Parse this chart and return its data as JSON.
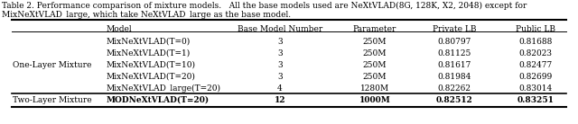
{
  "caption_line1": "Table 2. Performance comparison of mixture models.   All the base models used are NeXtVLAD(8G, 128K, X2, 2048) except for",
  "caption_line2": "MixNeXtVLAD_large, which take NeXtVLAD_large as the base model.",
  "headers": [
    "Model",
    "Base Model Number",
    "Parameter",
    "Private LB",
    "Public LB"
  ],
  "rows": [
    {
      "group": "One-Layer Mixture",
      "model": "MixNeXtVLAD(T=0)",
      "base": "3",
      "param": "250M",
      "private": "0.80797",
      "public": "0.81688"
    },
    {
      "group": "",
      "model": "MixNeXtVLAD(T=1)",
      "base": "3",
      "param": "250M",
      "private": "0.81125",
      "public": "0.82023"
    },
    {
      "group": "",
      "model": "MixNeXtVLAD(T=10)",
      "base": "3",
      "param": "250M",
      "private": "0.81617",
      "public": "0.82477"
    },
    {
      "group": "",
      "model": "MixNeXtVLAD(T=20)",
      "base": "3",
      "param": "250M",
      "private": "0.81984",
      "public": "0.82699"
    },
    {
      "group": "",
      "model": "MixNeXtVLAD_large(T=20)",
      "base": "4",
      "param": "1280M",
      "private": "0.82262",
      "public": "0.83014"
    },
    {
      "group": "Two-Layer Mixture",
      "model": "MODNeXtVLAD(T=20)",
      "base": "12",
      "param": "1000M",
      "private": "0.82512",
      "public": "0.83251"
    }
  ],
  "font_size": 6.5,
  "caption_font_size": 6.5,
  "figwidth": 6.4,
  "figheight": 1.38,
  "dpi": 100
}
